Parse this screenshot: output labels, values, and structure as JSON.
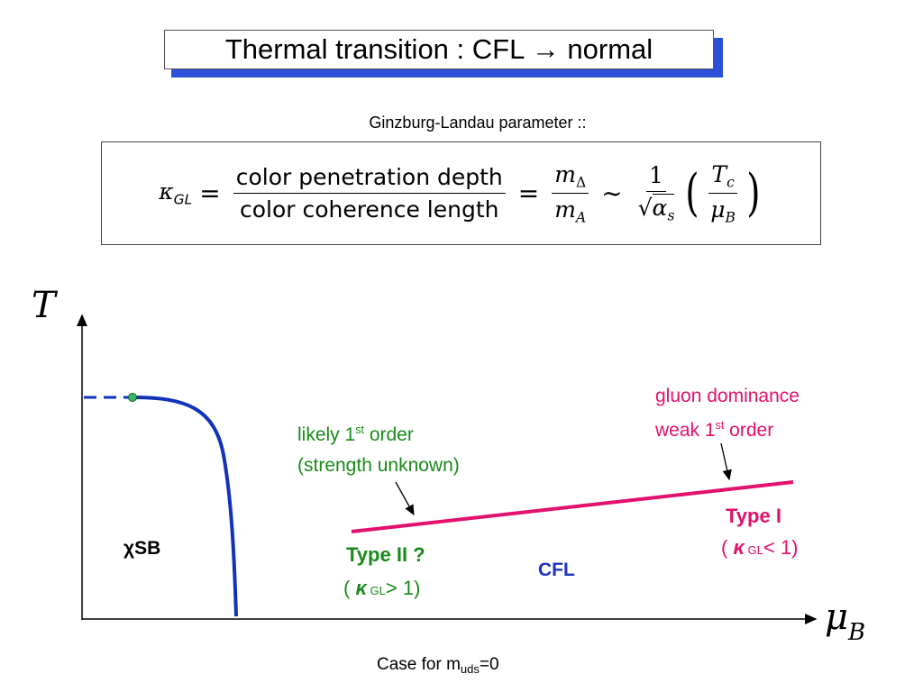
{
  "title": "Thermal transition : CFL → normal",
  "gl_caption": "Ginzburg-Landau parameter ::",
  "formula": {
    "kappa": "κ",
    "kappa_sub": "GL",
    "eq": "=",
    "num1": "color penetration depth",
    "den1": "color coherence length",
    "num2_base": "m",
    "num2_sub": "Δ",
    "den2_base": "m",
    "den2_sub": "A",
    "sim": "∼",
    "num3": "1",
    "den3_root": "√",
    "den3_base": "α",
    "den3_sub": "s",
    "lparen": "(",
    "num4_base": "T",
    "num4_sub": "c",
    "den4_base": "μ",
    "den4_sub": "B",
    "rparen": ")"
  },
  "axes": {
    "y_label": "T",
    "x_label_base": "μ",
    "x_label_sub": "B"
  },
  "regions": {
    "chiral": "χSB",
    "cfl": "CFL"
  },
  "annotations": {
    "green_line1_pre": "likely 1",
    "green_line1_sup": "st",
    "green_line1_post": " order",
    "green_line2": "(strength unknown)",
    "pink_line1": "gluon dominance",
    "pink_line2_pre": "weak 1",
    "pink_line2_sup": "st",
    "pink_line2_post": " order"
  },
  "types": {
    "type2_label": "Type II ?",
    "type2_open": "( ",
    "type2_kappa": "κ",
    "type2_sub": " GL",
    "type2_cond": "> 1)",
    "type1_label": "Type I",
    "type1_open": "( ",
    "type1_kappa": "κ",
    "type1_sub": " GL",
    "type1_cond": "< 1)"
  },
  "footnote": {
    "pre": "Case for m",
    "sub": "uds",
    "post": "=0"
  },
  "colors": {
    "title_shadow": "#2b4fd6",
    "boundary_blue": "#1133bb",
    "transition_pink": "#e3106e",
    "note_green": "#1a8a1a",
    "critical_point": "#3cb371"
  }
}
